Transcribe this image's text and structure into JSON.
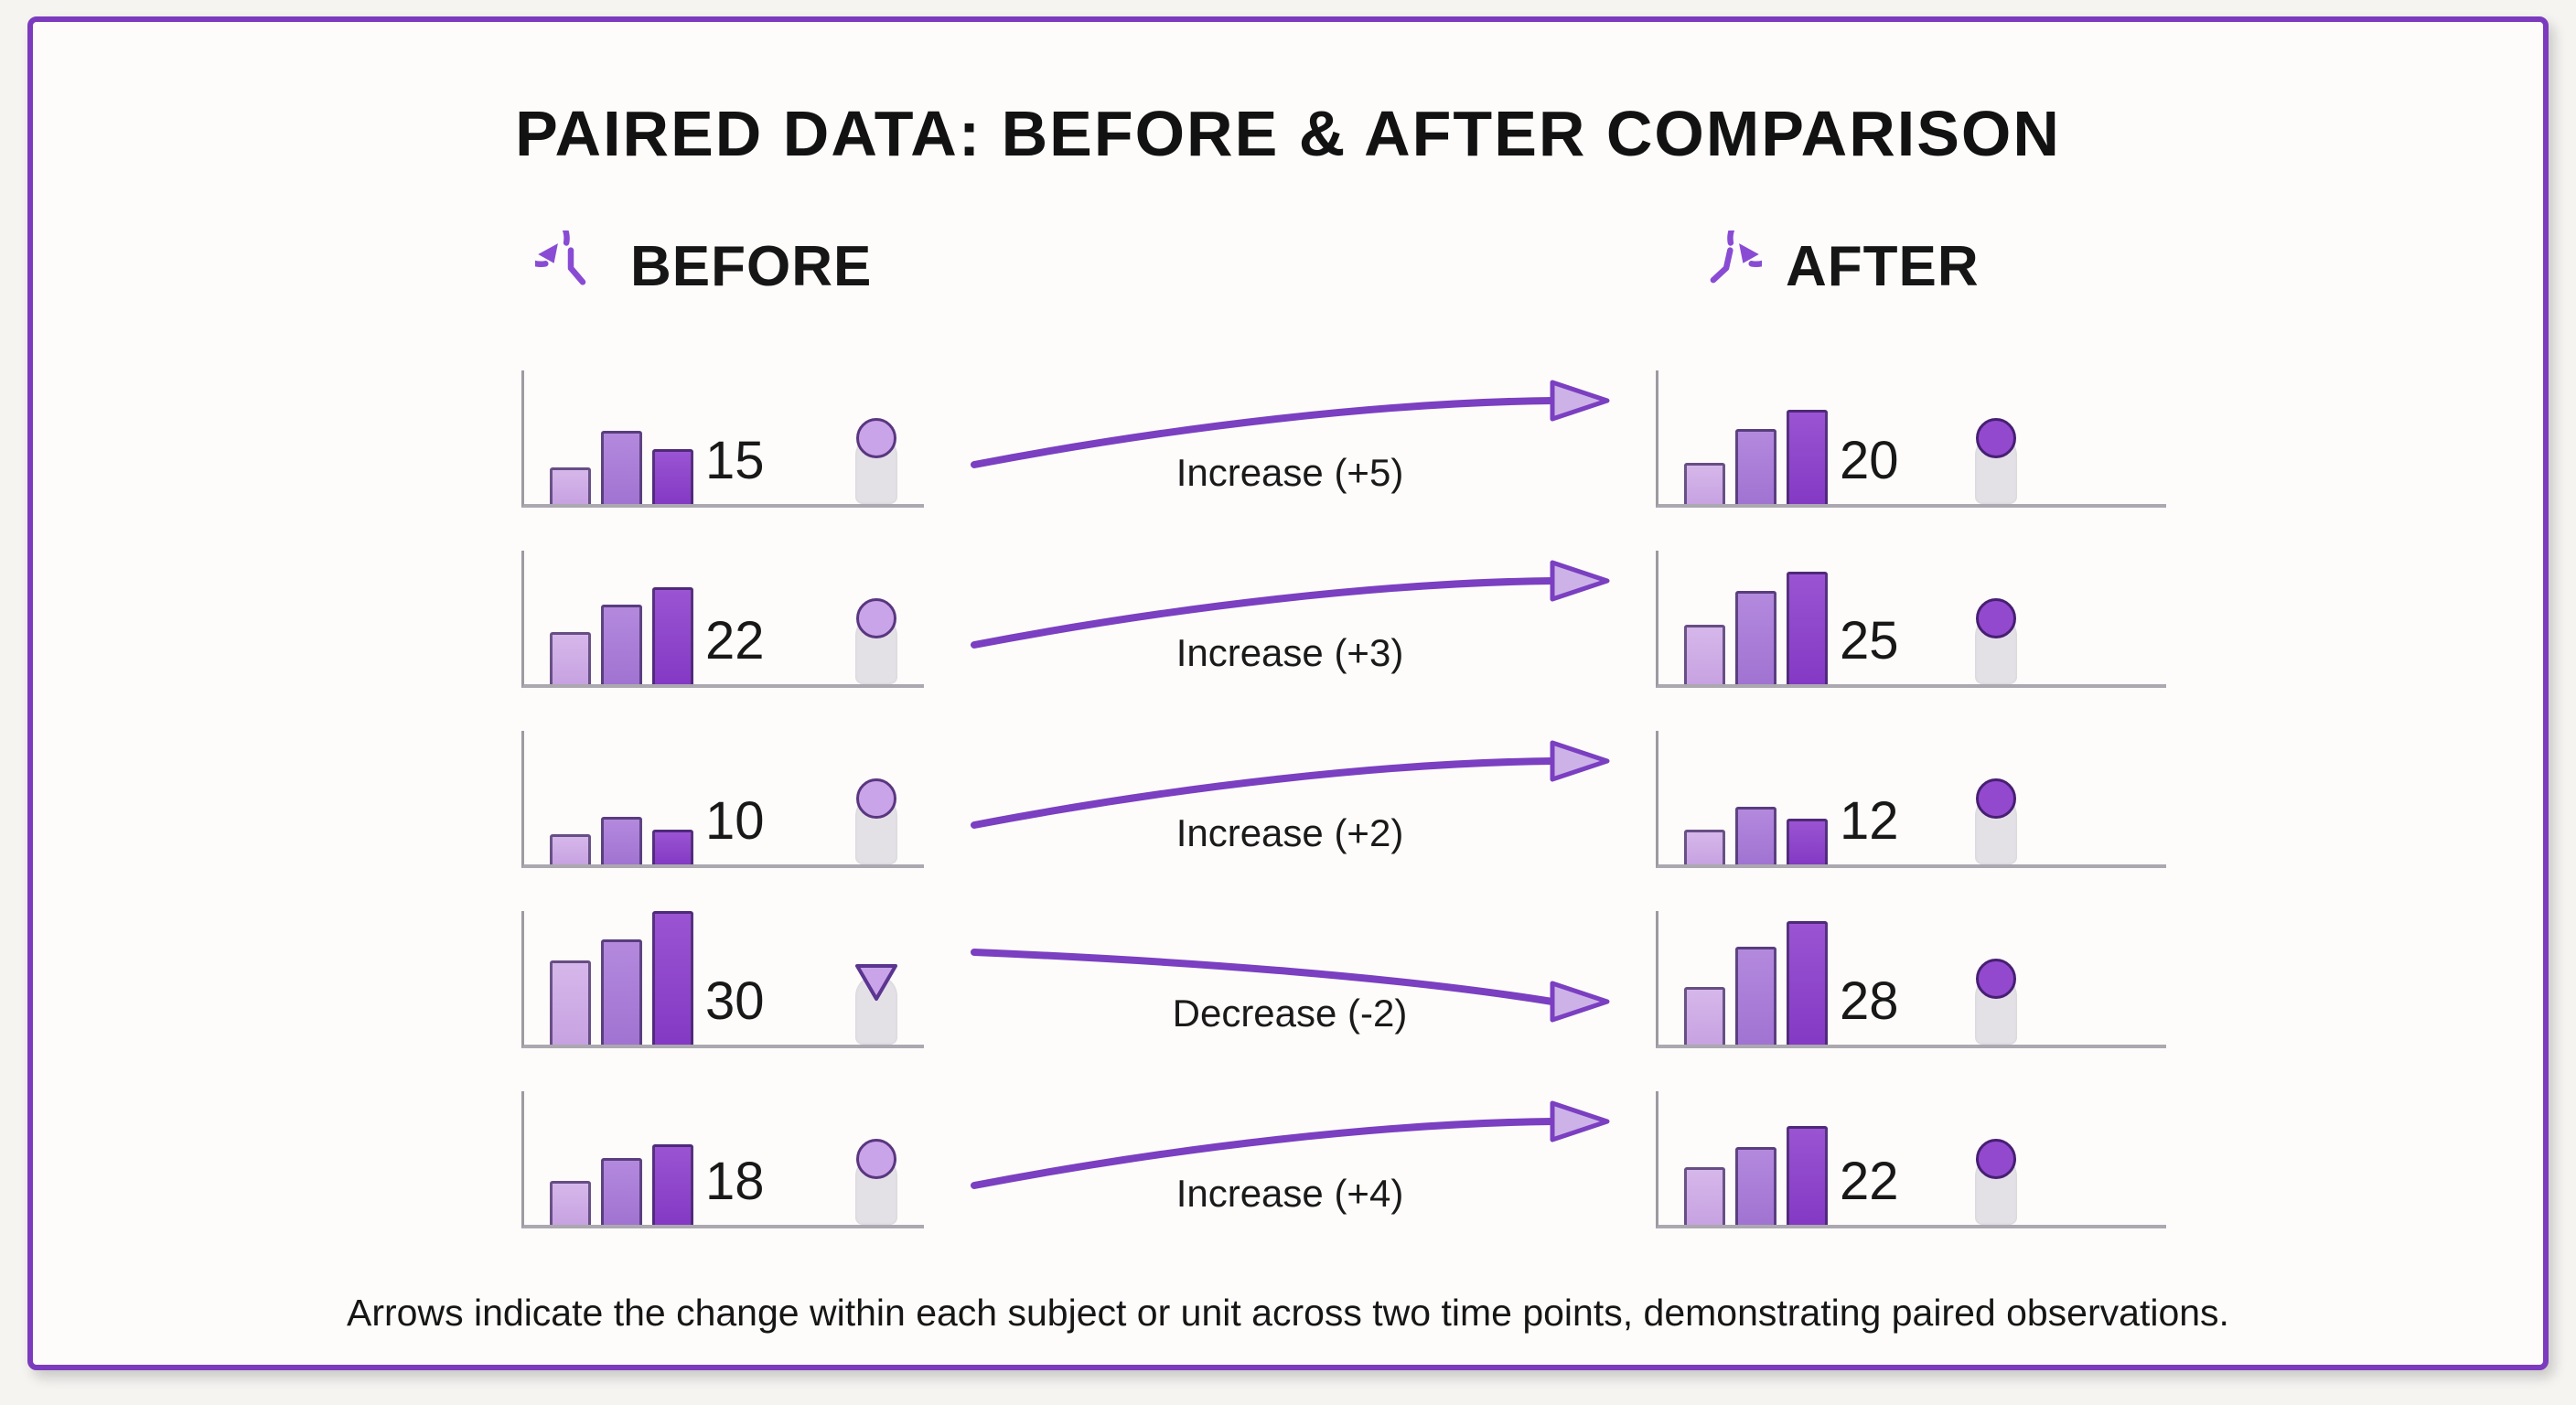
{
  "title": "PAIRED DATA: BEFORE & AFTER COMPARISON",
  "header": {
    "before_label": "BEFORE",
    "after_label": "AFTER",
    "before_icon": "history-clock-icon",
    "after_icon": "clockwise-clock-icon"
  },
  "footer": "Arrows indicate the change within each subject or unit across two time points, demonstrating paired observations.",
  "colors": {
    "card_border": "#7c3bbe",
    "icon_accent": "#8a4bd4",
    "arrow": "#7b3fc1",
    "arrowhead_fill": "#cdb2e8",
    "bar_light": "#cda9e3",
    "bar_medium": "#a87cd8",
    "bar_dark": "#8a41c8",
    "marker_before": "#c9a4e8",
    "marker_after": "#9349ce",
    "marker_track": "#e3e1e6",
    "text": "#141414"
  },
  "chart_data": {
    "type": "paired-bar-comparison",
    "title": "PAIRED DATA: BEFORE & AFTER COMPARISON",
    "columns": [
      "BEFORE",
      "AFTER"
    ],
    "rows": [
      {
        "before_value": 15,
        "after_value": 20,
        "change": 5,
        "change_label": "Increase (+5)",
        "direction": "increase",
        "before_marker": "circle",
        "after_marker": "circle",
        "before_bars": [
          40,
          80,
          60
        ],
        "after_bars": [
          45,
          82,
          103
        ]
      },
      {
        "before_value": 22,
        "after_value": 25,
        "change": 3,
        "change_label": "Increase (+3)",
        "direction": "increase",
        "before_marker": "circle",
        "after_marker": "circle",
        "before_bars": [
          57,
          87,
          106
        ],
        "after_bars": [
          65,
          102,
          123
        ]
      },
      {
        "before_value": 10,
        "after_value": 12,
        "change": 2,
        "change_label": "Increase (+2)",
        "direction": "increase",
        "before_marker": "circle",
        "after_marker": "circle",
        "before_bars": [
          33,
          52,
          38
        ],
        "after_bars": [
          38,
          63,
          50
        ]
      },
      {
        "before_value": 30,
        "after_value": 28,
        "change": -2,
        "change_label": "Decrease (-2)",
        "direction": "decrease",
        "before_marker": "triangle-down",
        "after_marker": "circle",
        "before_bars": [
          92,
          115,
          146
        ],
        "after_bars": [
          63,
          107,
          135
        ]
      },
      {
        "before_value": 18,
        "after_value": 22,
        "change": 4,
        "change_label": "Increase (+4)",
        "direction": "increase",
        "before_marker": "circle",
        "after_marker": "circle",
        "before_bars": [
          48,
          73,
          88
        ],
        "after_bars": [
          63,
          85,
          108
        ]
      }
    ]
  }
}
